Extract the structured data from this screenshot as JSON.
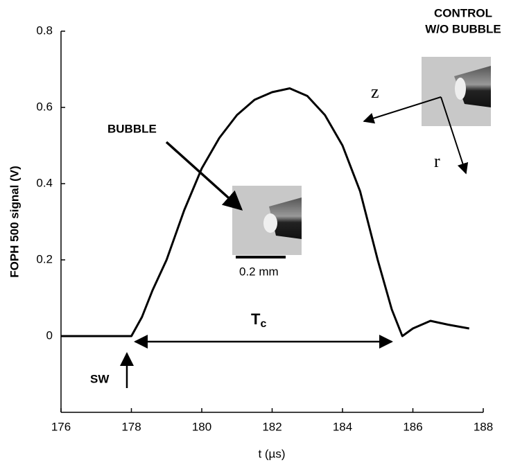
{
  "chart_data": {
    "type": "line",
    "xlabel": "t (µs)",
    "ylabel": "FOPH 500 signal (V)",
    "x": [
      176,
      177,
      178,
      178.3,
      178.6,
      179,
      179.5,
      180,
      180.5,
      181,
      181.5,
      182,
      182.5,
      183,
      183.5,
      184,
      184.5,
      185,
      185.4,
      185.7,
      186,
      186.5,
      187,
      187.6
    ],
    "values": [
      0,
      0,
      0,
      0.05,
      0.12,
      0.2,
      0.33,
      0.44,
      0.52,
      0.58,
      0.62,
      0.64,
      0.65,
      0.63,
      0.58,
      0.5,
      0.38,
      0.2,
      0.07,
      0,
      0.02,
      0.04,
      0.03,
      0.02
    ],
    "color": "#000000",
    "xlim": [
      176,
      188
    ],
    "xticks": [
      176,
      178,
      180,
      182,
      184,
      186,
      188
    ],
    "ylim": [
      -0.2,
      0.8
    ],
    "yticks": [
      0,
      0.2,
      0.4,
      0.6,
      0.8
    ],
    "annotations": {
      "control": "CONTROL",
      "without": "W/O BUBBLE",
      "bubble": "BUBBLE",
      "scale": "0.2 mm",
      "tc_main": "T",
      "tc_sub": "c",
      "sw": "SW",
      "z": "z",
      "r": "r"
    }
  }
}
